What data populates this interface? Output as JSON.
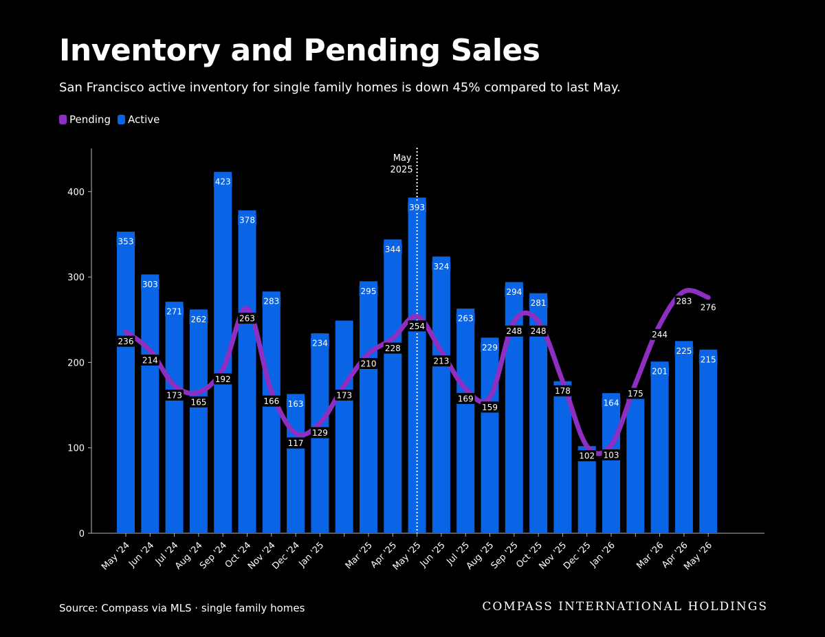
{
  "title": "Inventory and Pending Sales",
  "subtitle": "San Francisco active inventory for single family homes is down 45% compared to last May.",
  "source": "Source: Compass via MLS · single family homes",
  "brand": "COMPASS INTERNATIONAL HOLDINGS",
  "colors": {
    "background": "#000000",
    "active": "#0a64e6",
    "pending": "#8f2fc2",
    "text": "#ffffff"
  },
  "chart_data": {
    "type": "bar",
    "categories": [
      "May '24",
      "Jun '24",
      "Jul '24",
      "Aug '24",
      "Sep '24",
      "Oct '24",
      "Nov '24",
      "Dec '24",
      "Jan '25",
      "",
      "Mar '25",
      "Apr '25",
      "May '25",
      "Jun '25",
      "Jul '25",
      "Aug '25",
      "Sep '25",
      "Oct '25",
      "Nov '25",
      "Dec '25",
      "Jan '26",
      "",
      "Mar '26",
      "Apr '26",
      "May '26"
    ],
    "series": [
      {
        "name": "Active",
        "kind": "bar",
        "values": [
          353,
          303,
          271,
          262,
          423,
          378,
          283,
          163,
          234,
          249,
          295,
          344,
          393,
          324,
          263,
          229,
          294,
          281,
          178,
          102,
          164,
          170,
          201,
          225,
          215
        ],
        "labels": [
          "353",
          "303",
          "271",
          "262",
          "423",
          "378",
          "283",
          "163",
          "234",
          "",
          "295",
          "344",
          "393",
          "324",
          "263",
          "229",
          "294",
          "281",
          "",
          "",
          "164",
          "",
          "201",
          "225",
          "215"
        ]
      },
      {
        "name": "Pending",
        "kind": "line",
        "values": [
          236,
          214,
          173,
          165,
          192,
          263,
          166,
          117,
          129,
          173,
          210,
          228,
          254,
          213,
          169,
          159,
          248,
          248,
          178,
          102,
          103,
          175,
          244,
          283,
          276
        ],
        "labels": [
          "236",
          "214",
          "173",
          "165",
          "192",
          "263",
          "166",
          "117",
          "129",
          "173",
          "210",
          "228",
          "254",
          "213",
          "169",
          "159",
          "248",
          "248",
          "178",
          "102",
          "103",
          "175",
          "244",
          "283",
          "276"
        ]
      }
    ],
    "yticks": [
      0,
      100,
      200,
      300,
      400
    ],
    "ylim": [
      0,
      450
    ],
    "marker": {
      "category_index": 12,
      "label_line1": "May",
      "label_line2": "2025"
    },
    "legend_position": "top-left",
    "grid": false
  }
}
